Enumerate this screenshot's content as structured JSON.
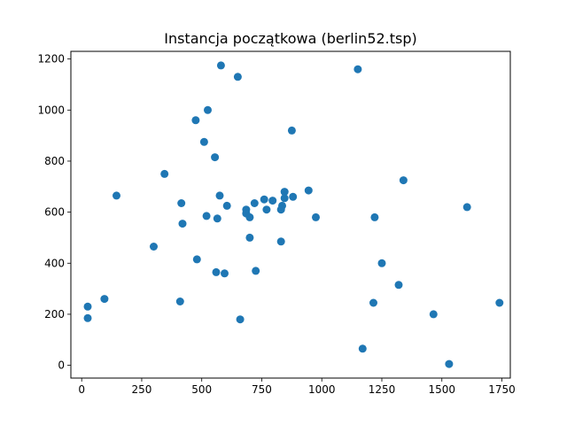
{
  "chart_data": {
    "type": "scatter",
    "title": "Instancja początkowa (berlin52.tsp)",
    "xlabel": "",
    "ylabel": "",
    "xlim": [
      -45,
      1785
    ],
    "ylim": [
      -50,
      1230
    ],
    "xticks": [
      0,
      250,
      500,
      750,
      1000,
      1250,
      1500,
      1750
    ],
    "yticks": [
      0,
      200,
      400,
      600,
      800,
      1000,
      1200
    ],
    "grid": false,
    "marker_color": "#1f77b4",
    "series": [
      {
        "points": [
          [
            565,
            575
          ],
          [
            25,
            185
          ],
          [
            345,
            750
          ],
          [
            945,
            685
          ],
          [
            845,
            655
          ],
          [
            880,
            660
          ],
          [
            25,
            230
          ],
          [
            525,
            1000
          ],
          [
            580,
            1175
          ],
          [
            650,
            1130
          ],
          [
            1605,
            620
          ],
          [
            1220,
            580
          ],
          [
            1465,
            200
          ],
          [
            1530,
            5
          ],
          [
            845,
            680
          ],
          [
            725,
            370
          ],
          [
            145,
            665
          ],
          [
            415,
            635
          ],
          [
            510,
            875
          ],
          [
            560,
            365
          ],
          [
            300,
            465
          ],
          [
            520,
            585
          ],
          [
            480,
            415
          ],
          [
            835,
            625
          ],
          [
            975,
            580
          ],
          [
            1215,
            245
          ],
          [
            1320,
            315
          ],
          [
            1250,
            400
          ],
          [
            660,
            180
          ],
          [
            410,
            250
          ],
          [
            420,
            555
          ],
          [
            575,
            665
          ],
          [
            1150,
            1160
          ],
          [
            700,
            580
          ],
          [
            685,
            595
          ],
          [
            685,
            610
          ],
          [
            770,
            610
          ],
          [
            795,
            645
          ],
          [
            720,
            635
          ],
          [
            760,
            650
          ],
          [
            475,
            960
          ],
          [
            95,
            260
          ],
          [
            875,
            920
          ],
          [
            700,
            500
          ],
          [
            555,
            815
          ],
          [
            830,
            485
          ],
          [
            1170,
            65
          ],
          [
            830,
            610
          ],
          [
            605,
            625
          ],
          [
            595,
            360
          ],
          [
            1340,
            725
          ],
          [
            1740,
            245
          ]
        ]
      }
    ]
  }
}
